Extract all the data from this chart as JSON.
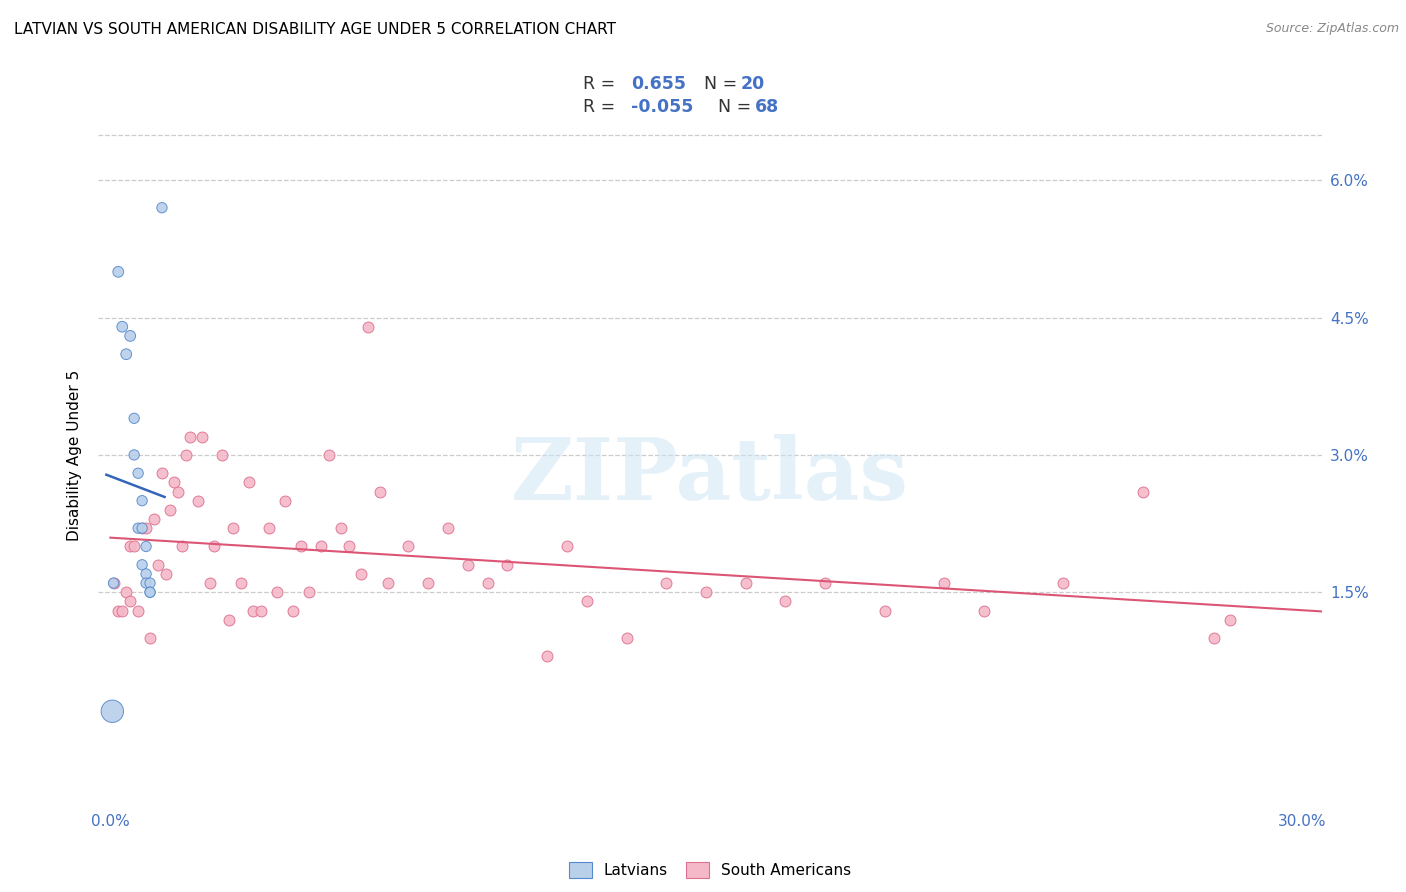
{
  "title": "LATVIAN VS SOUTH AMERICAN DISABILITY AGE UNDER 5 CORRELATION CHART",
  "source": "Source: ZipAtlas.com",
  "ylabel": "Disability Age Under 5",
  "latvian_R": "0.655",
  "latvian_N": "20",
  "south_american_R": "-0.055",
  "south_american_N": "68",
  "latvian_color": "#b8d0ea",
  "latvian_edge_color": "#5588cc",
  "latvian_line_color": "#3366bb",
  "south_american_color": "#f5b8c8",
  "south_american_edge_color": "#dd7090",
  "south_american_line_color": "#dd5575",
  "watermark": "ZIPatlas",
  "ytick_vals": [
    0.015,
    0.03,
    0.045,
    0.06
  ],
  "ytick_labels": [
    "1.5%",
    "3.0%",
    "4.5%",
    "6.0%"
  ],
  "ylim": [
    -0.008,
    0.068
  ],
  "xlim": [
    -0.003,
    0.305
  ],
  "latvian_x": [
    0.0008,
    0.002,
    0.003,
    0.004,
    0.005,
    0.006,
    0.006,
    0.007,
    0.007,
    0.008,
    0.008,
    0.008,
    0.009,
    0.009,
    0.009,
    0.01,
    0.01,
    0.01,
    0.0005,
    0.013
  ],
  "latvian_y": [
    0.016,
    0.05,
    0.044,
    0.041,
    0.043,
    0.034,
    0.03,
    0.028,
    0.022,
    0.025,
    0.022,
    0.018,
    0.02,
    0.017,
    0.016,
    0.016,
    0.015,
    0.015,
    0.002,
    0.057
  ],
  "latvian_sizes": [
    55,
    60,
    60,
    60,
    60,
    55,
    55,
    55,
    55,
    55,
    55,
    55,
    55,
    55,
    55,
    55,
    55,
    55,
    260,
    55
  ],
  "south_american_x": [
    0.001,
    0.002,
    0.003,
    0.004,
    0.005,
    0.005,
    0.006,
    0.007,
    0.008,
    0.009,
    0.01,
    0.011,
    0.012,
    0.013,
    0.014,
    0.015,
    0.016,
    0.017,
    0.018,
    0.019,
    0.02,
    0.022,
    0.023,
    0.025,
    0.026,
    0.028,
    0.03,
    0.031,
    0.033,
    0.035,
    0.036,
    0.038,
    0.04,
    0.042,
    0.044,
    0.046,
    0.048,
    0.05,
    0.053,
    0.055,
    0.058,
    0.06,
    0.063,
    0.065,
    0.068,
    0.07,
    0.075,
    0.08,
    0.085,
    0.09,
    0.095,
    0.1,
    0.11,
    0.115,
    0.12,
    0.13,
    0.14,
    0.15,
    0.16,
    0.17,
    0.18,
    0.195,
    0.21,
    0.22,
    0.24,
    0.26,
    0.278,
    0.282
  ],
  "south_american_y": [
    0.016,
    0.013,
    0.013,
    0.015,
    0.02,
    0.014,
    0.02,
    0.013,
    0.022,
    0.022,
    0.01,
    0.023,
    0.018,
    0.028,
    0.017,
    0.024,
    0.027,
    0.026,
    0.02,
    0.03,
    0.032,
    0.025,
    0.032,
    0.016,
    0.02,
    0.03,
    0.012,
    0.022,
    0.016,
    0.027,
    0.013,
    0.013,
    0.022,
    0.015,
    0.025,
    0.013,
    0.02,
    0.015,
    0.02,
    0.03,
    0.022,
    0.02,
    0.017,
    0.044,
    0.026,
    0.016,
    0.02,
    0.016,
    0.022,
    0.018,
    0.016,
    0.018,
    0.008,
    0.02,
    0.014,
    0.01,
    0.016,
    0.015,
    0.016,
    0.014,
    0.016,
    0.013,
    0.016,
    0.013,
    0.016,
    0.026,
    0.01,
    0.012
  ]
}
